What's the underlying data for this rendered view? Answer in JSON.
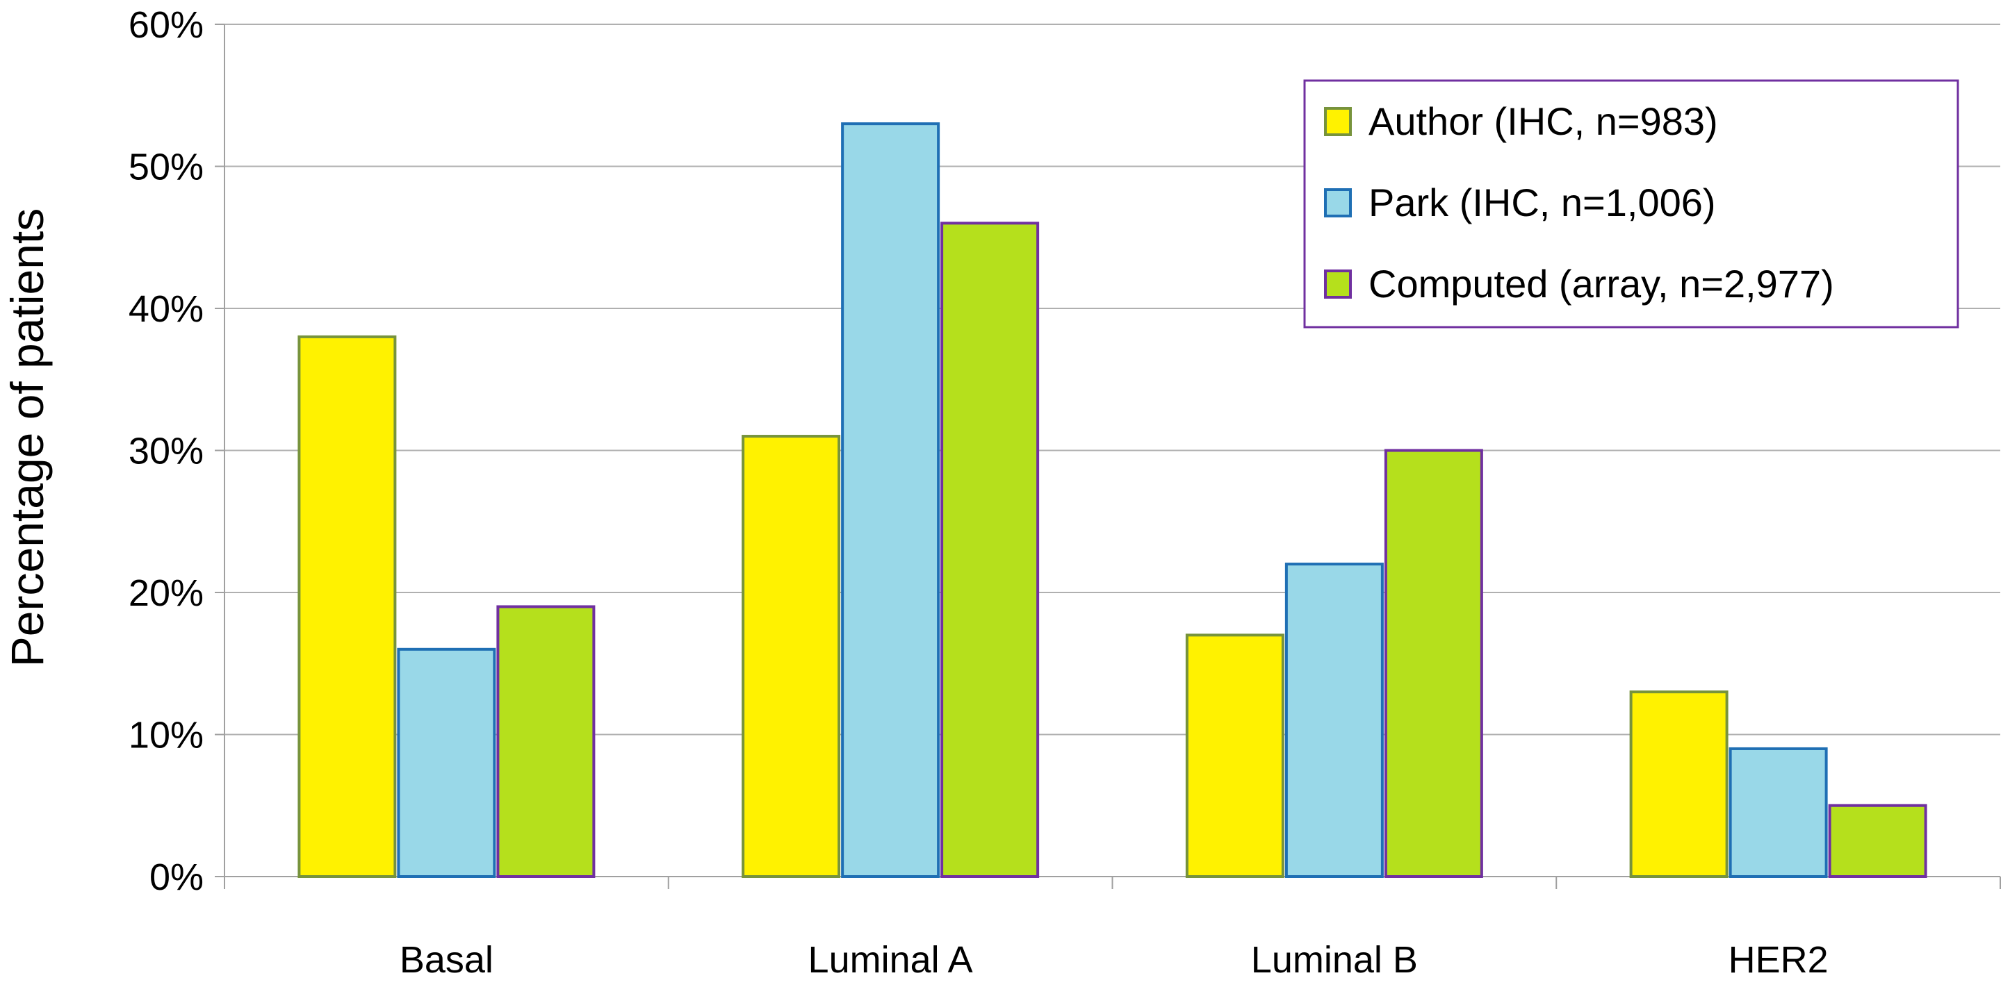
{
  "chart_data": {
    "type": "bar",
    "title": "",
    "xlabel": "",
    "ylabel": "Percentage of patients",
    "ylim": [
      0,
      60
    ],
    "y_unit": "%",
    "yticks": [
      "0%",
      "10%",
      "20%",
      "30%",
      "40%",
      "50%",
      "60%"
    ],
    "categories": [
      "Basal",
      "Luminal A",
      "Luminal B",
      "HER2"
    ],
    "series": [
      {
        "name": "Author (IHC, n=983)",
        "values": [
          38,
          31,
          17,
          13
        ],
        "fill": "#FFF200",
        "stroke": "#77933C"
      },
      {
        "name": "Park (IHC, n=1,006)",
        "values": [
          16,
          53,
          22,
          9
        ],
        "fill": "#99D8E8",
        "stroke": "#1F6FB4"
      },
      {
        "name": "Computed (array, n=2,977)",
        "values": [
          19,
          46,
          30,
          5
        ],
        "fill": "#B5E01C",
        "stroke": "#7030A0"
      }
    ],
    "grid": true,
    "legend_position": "top-right",
    "legend_border_color": "#7030A0"
  }
}
